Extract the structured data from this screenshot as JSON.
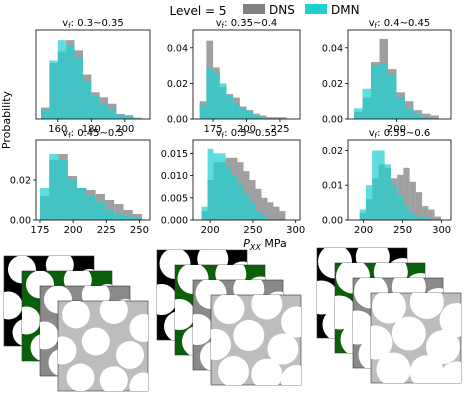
{
  "header": {
    "level_label": "Level = 5"
  },
  "legend": {
    "location": "top-center",
    "entries": [
      {
        "name": "DNS",
        "color": "#808080"
      },
      {
        "name": "DMN",
        "color": "#1fd0d0"
      }
    ]
  },
  "axes": {
    "ylabel": "Probability",
    "xlabel_base": "P",
    "xlabel_sub": "XX",
    "xlabel_unit": " MPa"
  },
  "colors": {
    "dns": "#808080",
    "dmn": "#1fd0d0",
    "rve_black": "#000000",
    "rve_green": "#0a5f0a",
    "rve_grey": "#8a8a8a",
    "rve_light": "#bdbdbd",
    "rve_fiber": "#ffffff"
  },
  "chart_data": [
    {
      "type": "bar",
      "title_prefix": "v",
      "title_sub": "f",
      "title_range": ": 0.3~0.35",
      "xlim": [
        147,
        215
      ],
      "ylim": [
        0,
        0.07
      ],
      "xticks": [
        160,
        180,
        200
      ],
      "yticks": [],
      "bin_edges": [
        150,
        155,
        160,
        165,
        170,
        175,
        180,
        185,
        190,
        195,
        200,
        205,
        210
      ],
      "series": [
        {
          "name": "DNS",
          "values": [
            0.009,
            0.044,
            0.053,
            0.062,
            0.054,
            0.035,
            0.021,
            0.017,
            0.012,
            0.004,
            0.003,
            0.001
          ]
        },
        {
          "name": "DMN",
          "values": [
            0.007,
            0.046,
            0.062,
            0.058,
            0.048,
            0.03,
            0.018,
            0.012,
            0.008,
            0.003,
            0.002,
            0.0
          ]
        }
      ]
    },
    {
      "type": "bar",
      "title_prefix": "v",
      "title_sub": "f",
      "title_range": ": 0.35~0.4",
      "xlim": [
        160,
        240
      ],
      "ylim": [
        0,
        0.05
      ],
      "xticks": [
        175,
        200,
        225
      ],
      "yticks": [
        0.0,
        0.02,
        0.04
      ],
      "bin_edges": [
        165,
        170,
        175,
        180,
        185,
        190,
        195,
        200,
        205,
        210,
        215,
        220,
        225,
        230
      ],
      "series": [
        {
          "name": "DNS",
          "values": [
            0.01,
            0.044,
            0.029,
            0.018,
            0.014,
            0.012,
            0.007,
            0.005,
            0.003,
            0.002,
            0.001,
            0.001,
            0.001
          ]
        },
        {
          "name": "DMN",
          "values": [
            0.008,
            0.029,
            0.026,
            0.02,
            0.013,
            0.009,
            0.006,
            0.004,
            0.002,
            0.001,
            0.0,
            0.0,
            0.0
          ]
        }
      ]
    },
    {
      "type": "bar",
      "title_prefix": "v",
      "title_sub": "f",
      "title_range": ": 0.4~0.45",
      "xlim": [
        160,
        245
      ],
      "ylim": [
        0,
        0.05
      ],
      "xticks": [
        200
      ],
      "yticks": [
        0.0,
        0.02,
        0.04
      ],
      "bin_edges": [
        165,
        172,
        179,
        186,
        193,
        200,
        207,
        214,
        221,
        228,
        235
      ],
      "series": [
        {
          "name": "DNS",
          "values": [
            0.004,
            0.012,
            0.032,
            0.045,
            0.028,
            0.015,
            0.01,
            0.005,
            0.003,
            0.002
          ]
        },
        {
          "name": "DMN",
          "values": [
            0.006,
            0.017,
            0.03,
            0.031,
            0.025,
            0.012,
            0.006,
            0.003,
            0.001,
            0.0
          ]
        }
      ]
    },
    {
      "type": "bar",
      "title_prefix": "v",
      "title_sub": "f",
      "title_range": ": 0.45~0.5",
      "xlim": [
        172,
        258
      ],
      "ylim": [
        0,
        0.04
      ],
      "xticks": [
        175,
        200,
        225,
        250
      ],
      "yticks": [
        0.0,
        0.02
      ],
      "bin_edges": [
        175,
        182,
        189,
        196,
        203,
        210,
        217,
        224,
        231,
        238,
        245,
        252
      ],
      "series": [
        {
          "name": "DNS",
          "values": [
            0.012,
            0.03,
            0.033,
            0.022,
            0.016,
            0.015,
            0.013,
            0.01,
            0.008,
            0.005,
            0.003
          ]
        },
        {
          "name": "DMN",
          "values": [
            0.016,
            0.033,
            0.03,
            0.02,
            0.016,
            0.012,
            0.009,
            0.005,
            0.003,
            0.002,
            0.001
          ]
        }
      ]
    },
    {
      "type": "bar",
      "title_prefix": "v",
      "title_sub": "f",
      "title_range": ": 0.5~0.55",
      "xlim": [
        180,
        305
      ],
      "ylim": [
        0,
        0.018
      ],
      "xticks": [
        200,
        250,
        300
      ],
      "yticks": [
        0.0,
        0.005,
        0.01,
        0.015
      ],
      "bin_edges": [
        190,
        197,
        204,
        211,
        218,
        225,
        232,
        239,
        246,
        253,
        260,
        267,
        274,
        281,
        288
      ],
      "series": [
        {
          "name": "DNS",
          "values": [
            0.002,
            0.009,
            0.013,
            0.013,
            0.014,
            0.014,
            0.013,
            0.011,
            0.009,
            0.007,
            0.005,
            0.004,
            0.003,
            0.002
          ]
        },
        {
          "name": "DMN",
          "values": [
            0.003,
            0.016,
            0.015,
            0.015,
            0.012,
            0.01,
            0.008,
            0.006,
            0.004,
            0.002,
            0.001,
            0.0,
            0.0,
            0.0
          ]
        }
      ]
    },
    {
      "type": "bar",
      "title_prefix": "v",
      "title_sub": "f",
      "title_range": ": 0.55~0.6",
      "xlim": [
        180,
        312
      ],
      "ylim": [
        0,
        0.023
      ],
      "xticks": [
        200,
        250,
        300
      ],
      "yticks": [
        0.0,
        0.01,
        0.02
      ],
      "bin_edges": [
        195,
        203,
        211,
        219,
        227,
        235,
        243,
        251,
        259,
        267,
        275,
        283,
        291,
        299
      ],
      "series": [
        {
          "name": "DNS",
          "values": [
            0.002,
            0.006,
            0.012,
            0.016,
            0.015,
            0.012,
            0.013,
            0.015,
            0.011,
            0.008,
            0.004,
            0.003,
            0.001
          ]
        },
        {
          "name": "DMN",
          "values": [
            0.003,
            0.01,
            0.02,
            0.02,
            0.016,
            0.01,
            0.007,
            0.004,
            0.002,
            0.001,
            0.001,
            0.0,
            0.0
          ]
        }
      ]
    }
  ]
}
